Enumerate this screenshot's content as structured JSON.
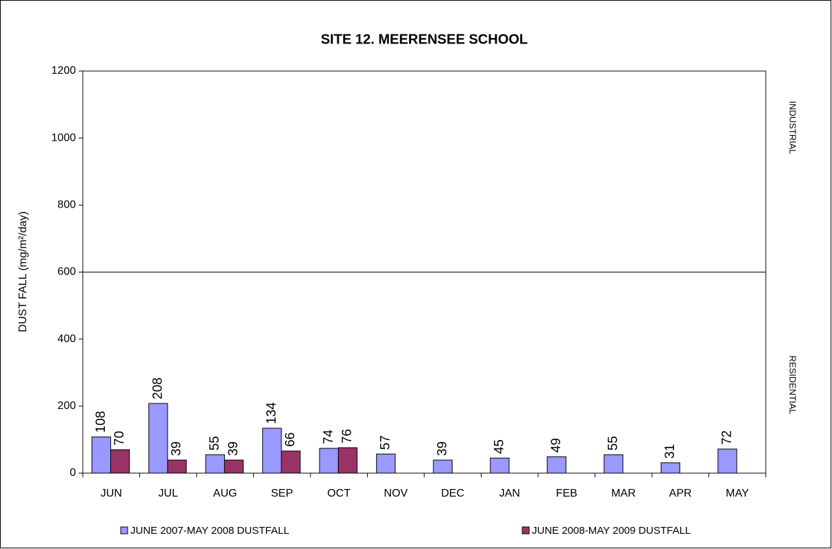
{
  "chart_data": {
    "type": "bar",
    "title": "SITE 12.  MEERENSEE SCHOOL",
    "y_label": "DUST FALL  (mg/m²/day)",
    "categories": [
      "JUN",
      "JUL",
      "AUG",
      "SEP",
      "OCT",
      "NOV",
      "DEC",
      "JAN",
      "FEB",
      "MAR",
      "APR",
      "MAY"
    ],
    "series": [
      {
        "name": "JUNE 2007-MAY 2008 DUSTFALL",
        "color": "#9999ff",
        "values": [
          108,
          208,
          55,
          134,
          74,
          57,
          39,
          45,
          49,
          55,
          31,
          72
        ]
      },
      {
        "name": "JUNE 2008-MAY 2009 DUSTFALL",
        "color": "#993366",
        "values": [
          70,
          39,
          39,
          66,
          76,
          null,
          null,
          null,
          null,
          null,
          null,
          null
        ]
      }
    ],
    "ylim": [
      0,
      1200
    ],
    "yticks": [
      0,
      200,
      400,
      600,
      800,
      1000,
      1200
    ],
    "reference_line": 600,
    "zone_labels": [
      "INDUSTRIAL",
      "RESIDENTIAL"
    ],
    "legend": "bottom"
  }
}
